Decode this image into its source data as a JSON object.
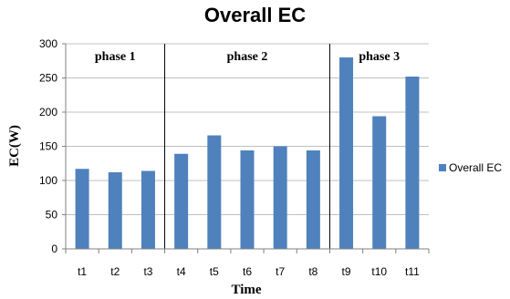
{
  "chart_data": {
    "type": "bar",
    "title": "Overall EC",
    "xlabel": "Time",
    "ylabel": "EC(W)",
    "categories": [
      "t1",
      "t2",
      "t3",
      "t4",
      "t5",
      "t6",
      "t7",
      "t8",
      "t9",
      "t10",
      "t11"
    ],
    "series": [
      {
        "name": "Overall EC",
        "values": [
          117,
          112,
          114,
          139,
          166,
          144,
          150,
          144,
          280,
          194,
          252
        ],
        "color": "#4f81bd"
      }
    ],
    "ylim": [
      0,
      300
    ],
    "yticks": [
      0,
      50,
      100,
      150,
      200,
      250,
      300
    ],
    "grid": true,
    "legend_position": "right",
    "phases": [
      {
        "label": "phase 1",
        "start": 0,
        "end": 2
      },
      {
        "label": "phase 2",
        "start": 3,
        "end": 7
      },
      {
        "label": "phase 3",
        "start": 8,
        "end": 10
      }
    ]
  }
}
